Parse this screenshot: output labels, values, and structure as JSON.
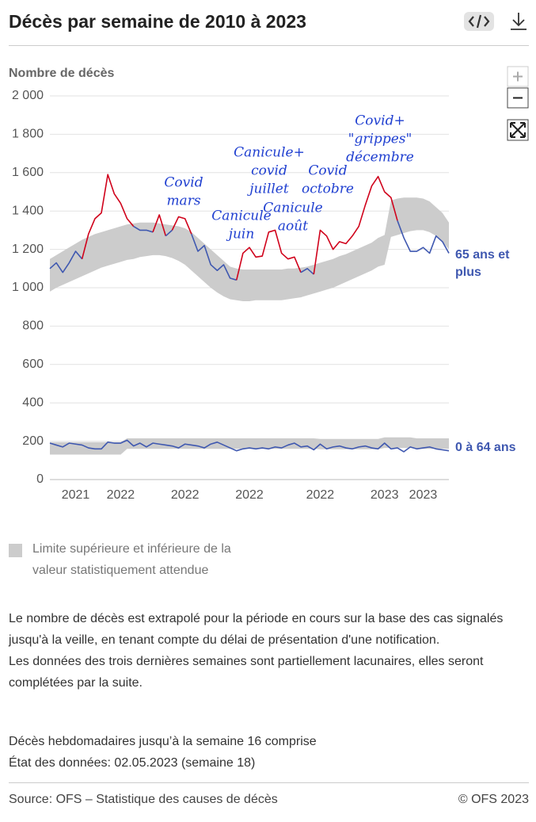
{
  "header": {
    "title": "Décès par semaine de 2010 à 2023"
  },
  "chart_data": {
    "type": "line",
    "y_axis_label": "Nombre de décès",
    "categories": [
      null,
      null,
      null,
      null,
      "2021",
      null,
      null,
      null,
      null,
      null,
      null,
      "2022",
      null,
      null,
      null,
      null,
      null,
      null,
      null,
      null,
      null,
      "2022",
      null,
      null,
      null,
      null,
      null,
      null,
      null,
      null,
      null,
      "2022",
      null,
      null,
      null,
      null,
      null,
      null,
      null,
      null,
      null,
      null,
      "2022",
      null,
      null,
      null,
      null,
      null,
      null,
      null,
      null,
      null,
      "2023",
      null,
      null,
      null,
      null,
      null,
      "2023",
      null,
      null,
      null,
      null
    ],
    "ylim": [
      0,
      2000
    ],
    "yticks": [
      0,
      200,
      400,
      600,
      800,
      {
        "value": 1000,
        "label": "1 000"
      },
      {
        "value": 1200,
        "label": "1 200"
      },
      {
        "value": 1400,
        "label": "1 400"
      },
      {
        "value": 1600,
        "label": "1 600"
      },
      {
        "value": 1800,
        "label": "1 800"
      },
      {
        "value": 2000,
        "label": "2 000"
      }
    ],
    "grid": true,
    "band_color": "#cccccc",
    "excess_color": "#d0021b",
    "band_label": "Limite supérieure et inférieure de la valeur statistiquement attendue",
    "series": [
      {
        "name": "65 ans et plus",
        "color": "#3f58b0",
        "values": [
          1100,
          1130,
          1080,
          1130,
          1190,
          1150,
          1280,
          1360,
          1390,
          1590,
          1490,
          1440,
          1360,
          1320,
          1300,
          1300,
          1290,
          1380,
          1270,
          1300,
          1370,
          1360,
          1280,
          1190,
          1220,
          1120,
          1090,
          1120,
          1050,
          1040,
          1180,
          1210,
          1160,
          1165,
          1290,
          1300,
          1180,
          1150,
          1160,
          1080,
          1100,
          1070,
          1300,
          1270,
          1200,
          1240,
          1230,
          1270,
          1320,
          1430,
          1530,
          1580,
          1500,
          1470,
          1350,
          1260,
          1190,
          1190,
          1210,
          1180,
          1270,
          1240,
          1180
        ],
        "upper": [
          1150,
          1170,
          1190,
          1210,
          1230,
          1250,
          1265,
          1280,
          1290,
          1300,
          1310,
          1320,
          1330,
          1335,
          1340,
          1340,
          1340,
          1335,
          1330,
          1325,
          1320,
          1310,
          1290,
          1260,
          1230,
          1200,
          1170,
          1140,
          1110,
          1100,
          1095,
          1095,
          1095,
          1095,
          1095,
          1095,
          1095,
          1100,
          1100,
          1105,
          1110,
          1120,
          1130,
          1140,
          1150,
          1165,
          1175,
          1190,
          1205,
          1220,
          1235,
          1260,
          1275,
          1455,
          1465,
          1470,
          1470,
          1470,
          1465,
          1450,
          1420,
          1390,
          1340
        ],
        "lower": [
          980,
          1000,
          1015,
          1030,
          1045,
          1060,
          1075,
          1090,
          1105,
          1115,
          1125,
          1135,
          1145,
          1150,
          1160,
          1165,
          1170,
          1170,
          1165,
          1155,
          1140,
          1120,
          1090,
          1060,
          1030,
          1000,
          975,
          955,
          940,
          935,
          930,
          930,
          935,
          935,
          935,
          935,
          935,
          940,
          945,
          950,
          960,
          970,
          980,
          990,
          1000,
          1015,
          1030,
          1045,
          1060,
          1075,
          1090,
          1110,
          1120,
          1265,
          1275,
          1285,
          1295,
          1300,
          1300,
          1290,
          1270,
          1240,
          1200
        ]
      },
      {
        "name": "0 à 64 ans",
        "color": "#3f58b0",
        "values": [
          190,
          180,
          170,
          190,
          185,
          180,
          165,
          160,
          160,
          195,
          190,
          190,
          205,
          175,
          190,
          170,
          190,
          185,
          180,
          175,
          165,
          185,
          180,
          175,
          165,
          185,
          195,
          180,
          165,
          150,
          160,
          165,
          160,
          165,
          160,
          170,
          165,
          180,
          190,
          170,
          175,
          155,
          185,
          160,
          170,
          175,
          165,
          160,
          170,
          175,
          165,
          160,
          190,
          160,
          165,
          145,
          170,
          160,
          165,
          170,
          160,
          155,
          150
        ],
        "upper": [
          195,
          195,
          195,
          195,
          195,
          195,
          195,
          195,
          195,
          195,
          195,
          195,
          215,
          215,
          215,
          215,
          215,
          215,
          215,
          215,
          215,
          215,
          215,
          215,
          215,
          215,
          215,
          215,
          215,
          215,
          215,
          215,
          215,
          215,
          215,
          215,
          215,
          215,
          215,
          215,
          215,
          215,
          212,
          212,
          212,
          212,
          212,
          212,
          212,
          212,
          212,
          212,
          220,
          220,
          220,
          220,
          220,
          215,
          215,
          215,
          215,
          215,
          215
        ],
        "lower": [
          130,
          130,
          130,
          130,
          130,
          130,
          130,
          130,
          130,
          130,
          130,
          130,
          160,
          160,
          160,
          160,
          160,
          160,
          160,
          160,
          160,
          160,
          160,
          160,
          160,
          160,
          160,
          160,
          160,
          160,
          160,
          160,
          160,
          160,
          160,
          160,
          160,
          160,
          160,
          160,
          160,
          160,
          158,
          158,
          158,
          158,
          158,
          158,
          158,
          158,
          158,
          158,
          165,
          165,
          165,
          165,
          165,
          160,
          160,
          160,
          160,
          160,
          160
        ]
      }
    ],
    "annotations": [
      {
        "lines": [
          "Covid",
          "mars"
        ]
      },
      {
        "lines": [
          "Canicule",
          "juin"
        ]
      },
      {
        "lines": [
          "Canicule+",
          "covid",
          "juillet"
        ]
      },
      {
        "lines": [
          "Canicule",
          "août"
        ]
      },
      {
        "lines": [
          "Covid",
          "octobre"
        ]
      },
      {
        "lines": [
          "Covid+",
          "\"grippes\"",
          "décembre"
        ]
      }
    ]
  },
  "notes": [
    "Le nombre de décès est extrapolé pour la période en cours sur la base des cas signalés jusqu'à la veille, en tenant compte du délai de présentation d'une notification.",
    "Les données des trois dernières semaines sont partiellement lacunaires, elles seront complétées par la suite."
  ],
  "status": [
    "Décès hebdomadaires jusqu’à la semaine 16 comprise",
    "État des données: 02.05.2023 (semaine 18)"
  ],
  "footer": {
    "source": "Source: OFS – Statistique des causes de décès",
    "copyright": "© OFS 2023"
  }
}
